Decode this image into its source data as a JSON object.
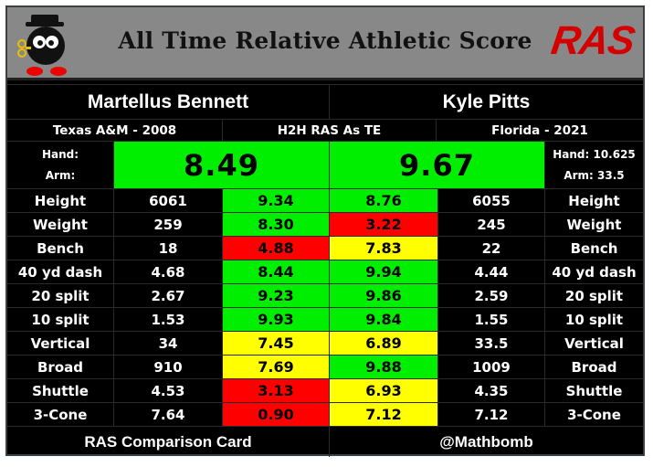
{
  "header": {
    "title": "All Time Relative Athletic Score",
    "logo": "RAS"
  },
  "left_player": {
    "name": "Martellus Bennett",
    "school_year": "Texas A&M - 2008",
    "overall": "8.49",
    "hand_label": "Hand:",
    "arm_label": "Arm:"
  },
  "right_player": {
    "name": "Kyle Pitts",
    "school_year": "Florida - 2021",
    "overall": "9.67",
    "hand": "Hand: 10.625",
    "arm": "Arm: 33.5"
  },
  "center_label": "H2H RAS As TE",
  "colors": {
    "green": "#00ee00",
    "yellow": "#ffff00",
    "red": "#ff0000",
    "background": "#000000"
  },
  "metrics": [
    {
      "label": "Height",
      "left_val": "6061",
      "left_score": "9.34",
      "left_color": "green",
      "right_score": "8.76",
      "right_color": "green",
      "right_val": "6055"
    },
    {
      "label": "Weight",
      "left_val": "259",
      "left_score": "8.30",
      "left_color": "green",
      "right_score": "3.22",
      "right_color": "red",
      "right_val": "245"
    },
    {
      "label": "Bench",
      "left_val": "18",
      "left_score": "4.88",
      "left_color": "red",
      "right_score": "7.83",
      "right_color": "yellow",
      "right_val": "22"
    },
    {
      "label": "40 yd dash",
      "left_val": "4.68",
      "left_score": "8.44",
      "left_color": "green",
      "right_score": "9.94",
      "right_color": "green",
      "right_val": "4.44"
    },
    {
      "label": "20 split",
      "left_val": "2.67",
      "left_score": "9.23",
      "left_color": "green",
      "right_score": "9.86",
      "right_color": "green",
      "right_val": "2.59"
    },
    {
      "label": "10 split",
      "left_val": "1.53",
      "left_score": "9.93",
      "left_color": "green",
      "right_score": "9.84",
      "right_color": "green",
      "right_val": "1.55"
    },
    {
      "label": "Vertical",
      "left_val": "34",
      "left_score": "7.45",
      "left_color": "yellow",
      "right_score": "6.89",
      "right_color": "yellow",
      "right_val": "33.5"
    },
    {
      "label": "Broad",
      "left_val": "910",
      "left_score": "7.69",
      "left_color": "yellow",
      "right_score": "9.88",
      "right_color": "green",
      "right_val": "1009"
    },
    {
      "label": "Shuttle",
      "left_val": "4.53",
      "left_score": "3.13",
      "left_color": "red",
      "right_score": "6.93",
      "right_color": "yellow",
      "right_val": "4.35"
    },
    {
      "label": "3-Cone",
      "left_val": "7.64",
      "left_score": "0.90",
      "left_color": "red",
      "right_score": "7.12",
      "right_color": "yellow",
      "right_val": "7.12"
    }
  ],
  "footer": {
    "left": "RAS Comparison Card",
    "right": "@Mathbomb"
  }
}
